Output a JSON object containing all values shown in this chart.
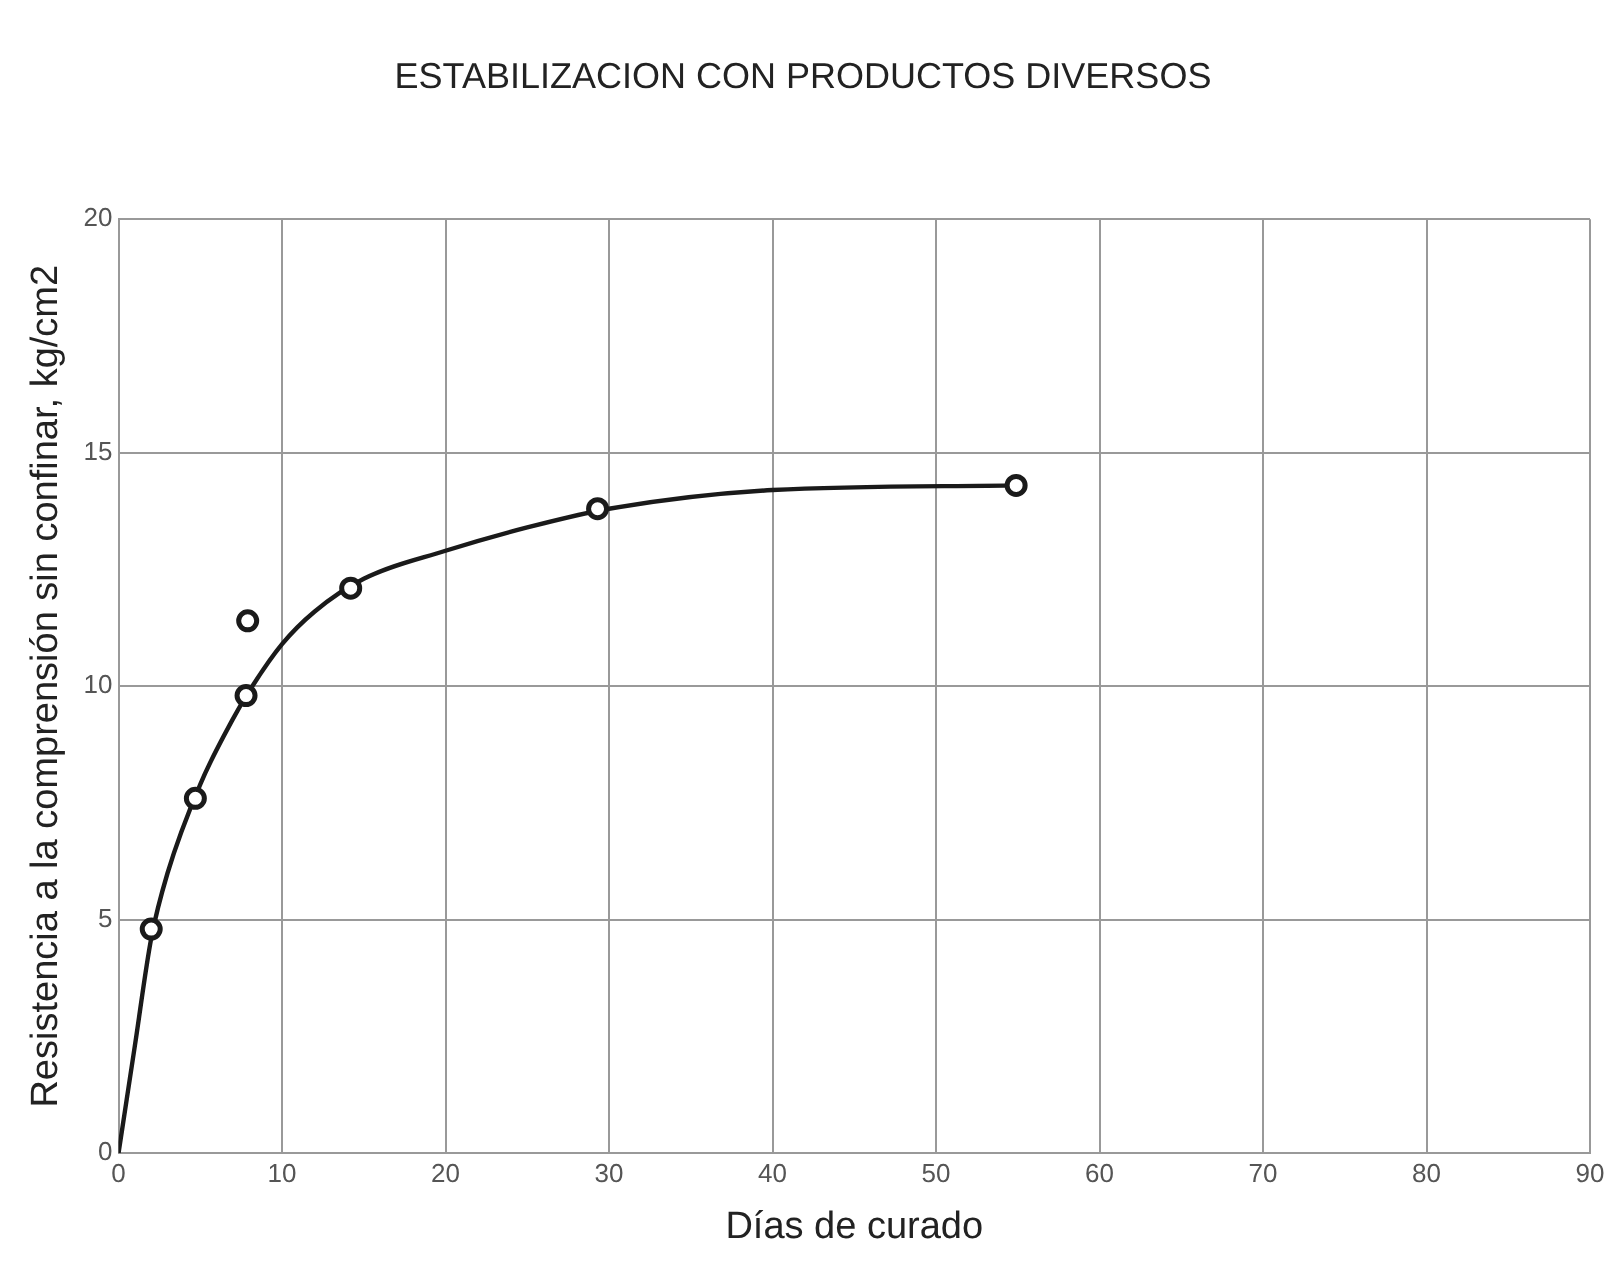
{
  "chart_data": {
    "type": "scatter",
    "title": "ESTABILIZACION CON PRODUCTOS DIVERSOS",
    "xlabel": "Días de curado",
    "ylabel": "Resistencia a la comprensión sin confinar, kg/cm2",
    "xlim": [
      0,
      90
    ],
    "xticks": [
      0,
      10,
      20,
      30,
      40,
      50,
      60,
      70,
      80,
      90
    ],
    "ylim": [
      0,
      20
    ],
    "yticks": [
      0,
      5,
      10,
      15,
      20
    ],
    "grid": true,
    "legend": false,
    "series": [
      {
        "type": "line",
        "color": "#1a1a1a",
        "marker": "none",
        "line_style": "solid",
        "x": [
          0,
          1,
          2,
          3,
          5,
          7,
          8,
          10,
          12,
          15,
          20,
          25,
          30,
          40,
          55
        ],
        "values": [
          0,
          2.3,
          4.6,
          6.0,
          7.9,
          9.3,
          9.9,
          10.9,
          11.6,
          12.3,
          12.9,
          13.4,
          13.8,
          14.2,
          14.3
        ]
      },
      {
        "type": "scatter",
        "color": "#1a1a1a",
        "marker": "circle",
        "x": [
          2,
          4.7,
          7.8,
          7.9,
          14.2,
          29.3,
          54.9
        ],
        "values": [
          4.8,
          7.6,
          9.8,
          11.4,
          12.1,
          13.8,
          14.3
        ]
      }
    ]
  }
}
